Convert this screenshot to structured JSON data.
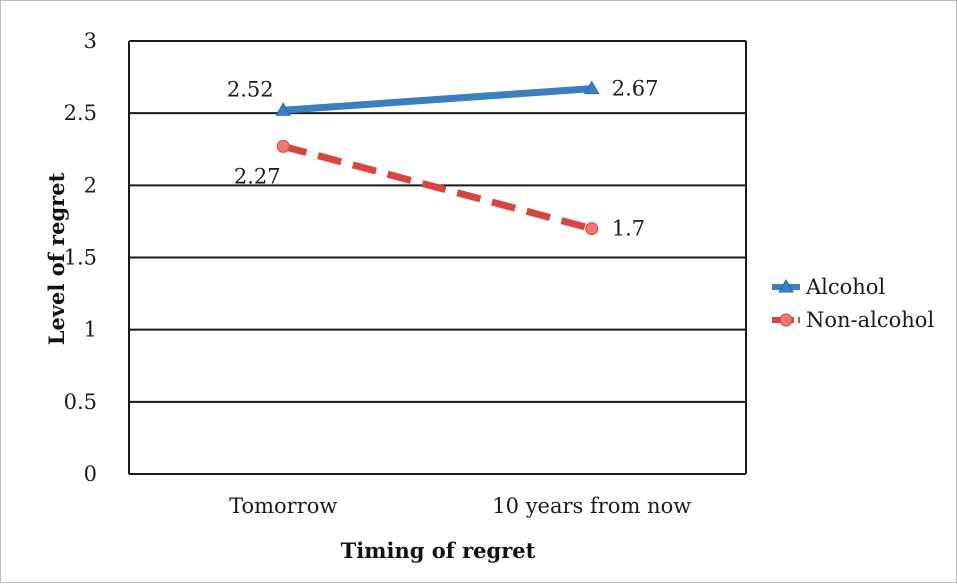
{
  "chart_data": {
    "type": "line",
    "categories": [
      "Tomorrow",
      "10 years from now"
    ],
    "series": [
      {
        "name": "Alcohol",
        "values": [
          2.52,
          2.67
        ],
        "color": "#3a7fc1",
        "marker": "triangle",
        "dash": "solid"
      },
      {
        "name": "Non-alcohol",
        "values": [
          2.27,
          1.7
        ],
        "color": "#d9443e",
        "marker": "circle",
        "dash": "dashed"
      }
    ],
    "data_labels": [
      {
        "series": 0,
        "point": 0,
        "text": "2.52"
      },
      {
        "series": 0,
        "point": 1,
        "text": "2.67"
      },
      {
        "series": 1,
        "point": 0,
        "text": "2.27"
      },
      {
        "series": 1,
        "point": 1,
        "text": "1.7"
      }
    ],
    "xlabel": "Timing of regret",
    "ylabel": "Level of regret",
    "ylim": [
      0,
      3
    ],
    "yticks": [
      0,
      0.5,
      1,
      1.5,
      2,
      2.5,
      3
    ],
    "ytick_labels": [
      "0",
      "0.5",
      "1",
      "1.5",
      "2",
      "2.5",
      "3"
    ],
    "grid": true,
    "legend_position": "right"
  }
}
